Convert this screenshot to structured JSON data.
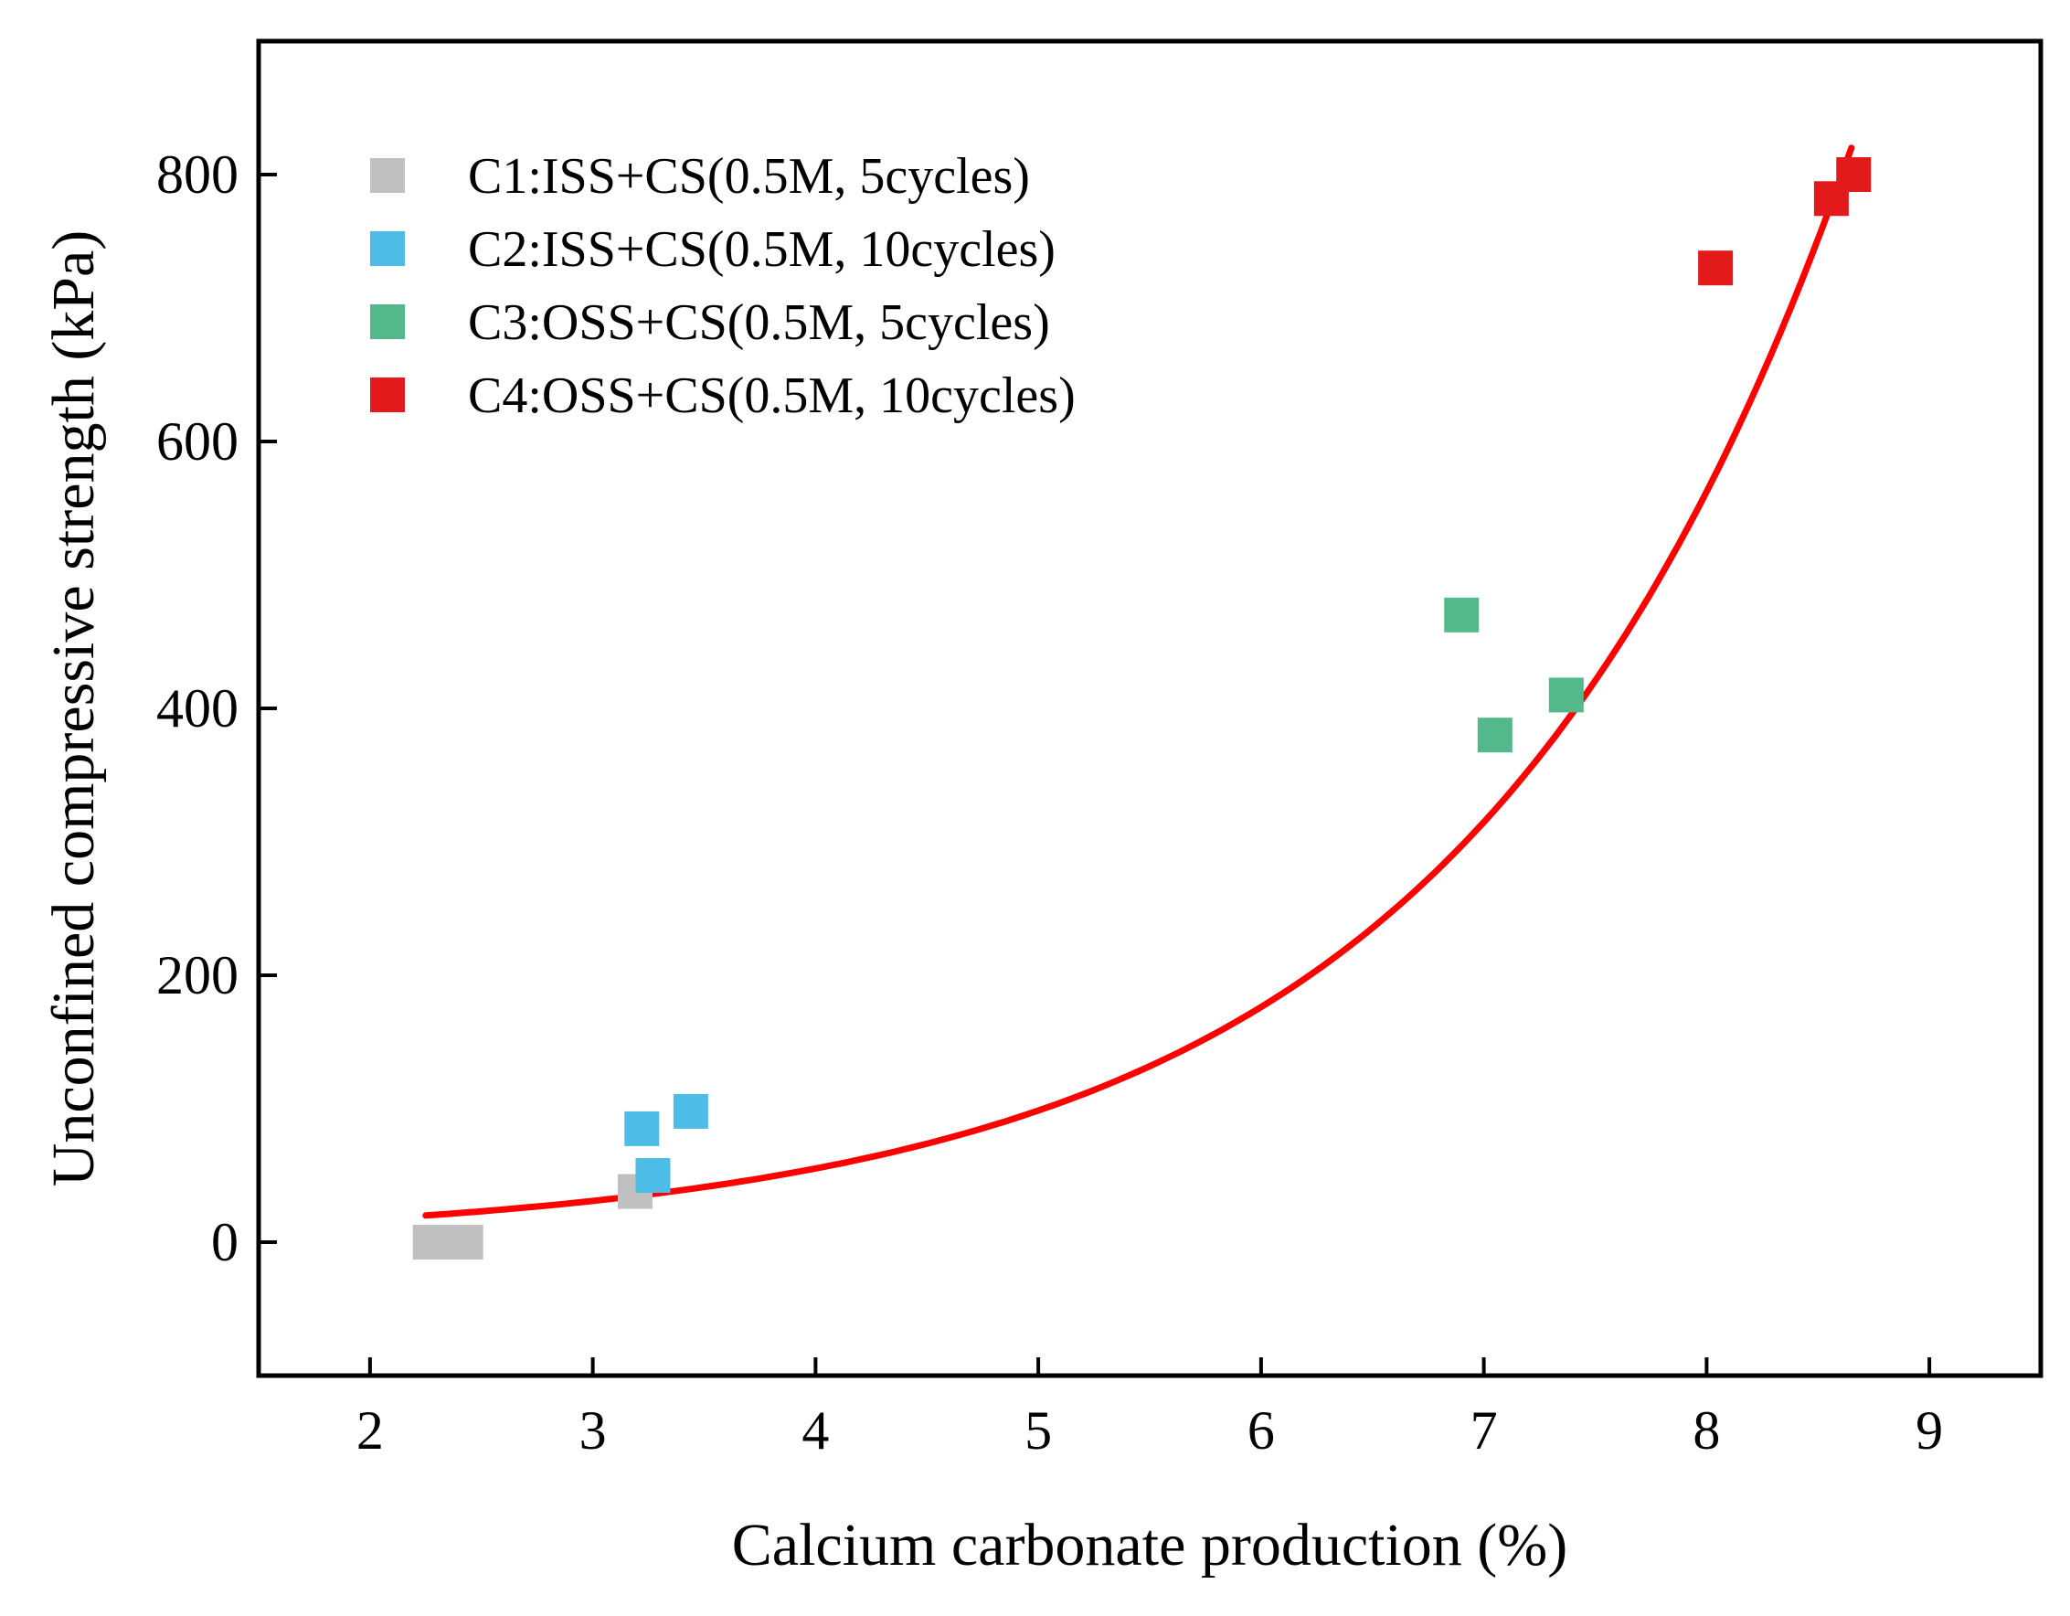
{
  "chart_data": {
    "type": "scatter",
    "title": "",
    "xlabel": "Calcium carbonate production (%)",
    "ylabel": "Unconfined compressive strength (kPa)",
    "xlim": [
      1.5,
      9.5
    ],
    "ylim": [
      -100,
      900
    ],
    "xticks": [
      2,
      3,
      4,
      5,
      6,
      7,
      8,
      9
    ],
    "yticks": [
      0,
      200,
      400,
      600,
      800
    ],
    "grid": false,
    "legend_position": "top-left",
    "series": [
      {
        "name": "C1:ISS+CS(0.5M, 5cycles)",
        "color": "#c0c0c0",
        "marker": "square",
        "points": [
          [
            2.27,
            0
          ],
          [
            2.33,
            0
          ],
          [
            2.38,
            0
          ],
          [
            2.43,
            0
          ],
          [
            3.19,
            38
          ]
        ]
      },
      {
        "name": "C2:ISS+CS(0.5M, 10cycles)",
        "color": "#4dbde8",
        "marker": "square",
        "points": [
          [
            3.22,
            85
          ],
          [
            3.27,
            50
          ],
          [
            3.44,
            98
          ]
        ]
      },
      {
        "name": "C3:OSS+CS(0.5M, 5cycles)",
        "color": "#53b98a",
        "marker": "square",
        "points": [
          [
            6.9,
            470
          ],
          [
            7.05,
            380
          ],
          [
            7.37,
            410
          ]
        ]
      },
      {
        "name": "C4:OSS+CS(0.5M, 10cycles)",
        "color": "#e31a1c",
        "marker": "square",
        "points": [
          [
            8.04,
            730
          ],
          [
            8.56,
            782
          ],
          [
            8.66,
            800
          ]
        ]
      }
    ],
    "fit_curve": {
      "type": "exponential",
      "color": "#ff0000",
      "x_range": [
        2.25,
        8.65
      ],
      "points": [
        [
          2.25,
          20
        ],
        [
          3.0,
          44
        ],
        [
          4.0,
          96
        ],
        [
          5.0,
          168
        ],
        [
          6.0,
          272
        ],
        [
          7.0,
          428
        ],
        [
          8.0,
          640
        ],
        [
          8.65,
          820
        ]
      ]
    }
  }
}
